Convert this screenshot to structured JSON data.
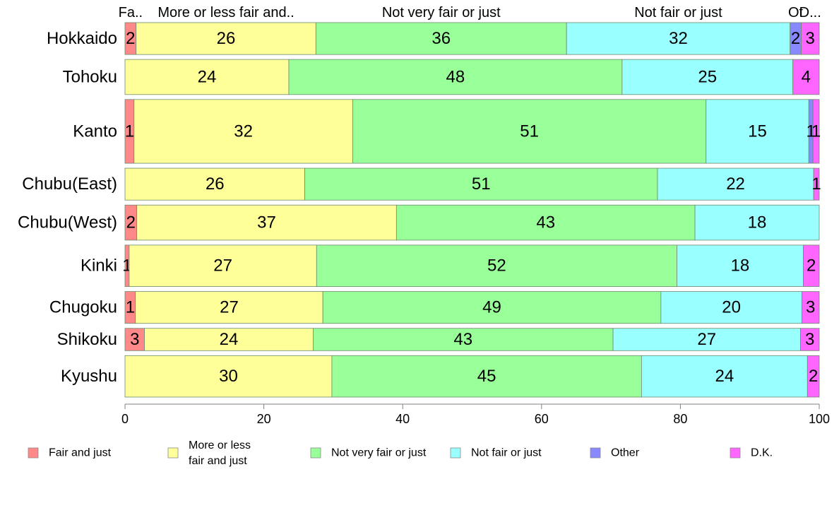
{
  "chart_data": {
    "type": "bar",
    "orientation": "horizontal",
    "stacked": true,
    "categories": [
      "Hokkaido",
      "Tohoku",
      "Kanto",
      "Chubu(East)",
      "Chubu(West)",
      "Kinki",
      "Chugoku",
      "Shikoku",
      "Kyushu"
    ],
    "row_weights": [
      1.0,
      1.1,
      2.0,
      1.0,
      1.1,
      1.3,
      1.0,
      0.7,
      1.3
    ],
    "series": [
      {
        "name": "Fair and just",
        "top_label": "Fa..",
        "color": "#ff8888",
        "values": [
          1.6,
          0,
          1.3,
          0,
          1.7,
          0.6,
          1.5,
          2.8,
          0
        ],
        "labels": [
          "2",
          "",
          "1",
          "",
          "2",
          "1",
          "1",
          "3",
          ""
        ]
      },
      {
        "name": "More or less fair and just",
        "legend_lines": [
          "More or less",
          "fair and just"
        ],
        "top_label": "More or less fair and..",
        "color": "#ffff99",
        "values": [
          25.9,
          23.6,
          31.5,
          25.9,
          37.4,
          27.0,
          27.0,
          24.3,
          29.8
        ],
        "labels": [
          "26",
          "24",
          "32",
          "26",
          "37",
          "27",
          "27",
          "24",
          "30"
        ]
      },
      {
        "name": "Not very fair or just",
        "top_label": "Not very fair or just",
        "color": "#99ff99",
        "values": [
          36.1,
          48.0,
          50.9,
          50.8,
          43.0,
          51.9,
          48.7,
          43.2,
          44.6
        ],
        "labels": [
          "36",
          "48",
          "51",
          "51",
          "43",
          "52",
          "49",
          "43",
          "45"
        ]
      },
      {
        "name": "Not fair or just",
        "top_label": "Not fair or just",
        "color": "#99ffff",
        "values": [
          32.2,
          24.6,
          14.8,
          22.5,
          17.9,
          18.2,
          20.3,
          27.0,
          23.9
        ],
        "labels": [
          "32",
          "25",
          "15",
          "22",
          "18",
          "18",
          "20",
          "27",
          "24"
        ]
      },
      {
        "name": "Other",
        "top_label": "Ot",
        "color": "#8888ff",
        "values": [
          1.6,
          0,
          0.6,
          0,
          0,
          0,
          0,
          0,
          0
        ],
        "labels": [
          "2",
          "",
          "1",
          "",
          "",
          "",
          "",
          "",
          ""
        ]
      },
      {
        "name": "D.K.",
        "top_label": "D...",
        "color": "#ff66ff",
        "values": [
          2.6,
          3.8,
          0.9,
          0.8,
          0,
          2.3,
          2.5,
          2.7,
          1.7
        ],
        "labels": [
          "3",
          "4",
          "1",
          "1",
          "",
          "2",
          "3",
          "3",
          "2"
        ]
      }
    ],
    "xlim": [
      0,
      100
    ],
    "xticks": [
      "0",
      "20",
      "40",
      "60",
      "80",
      "100"
    ],
    "xlabel": "",
    "ylabel": "",
    "grid": false,
    "legend_position": "bottom"
  }
}
